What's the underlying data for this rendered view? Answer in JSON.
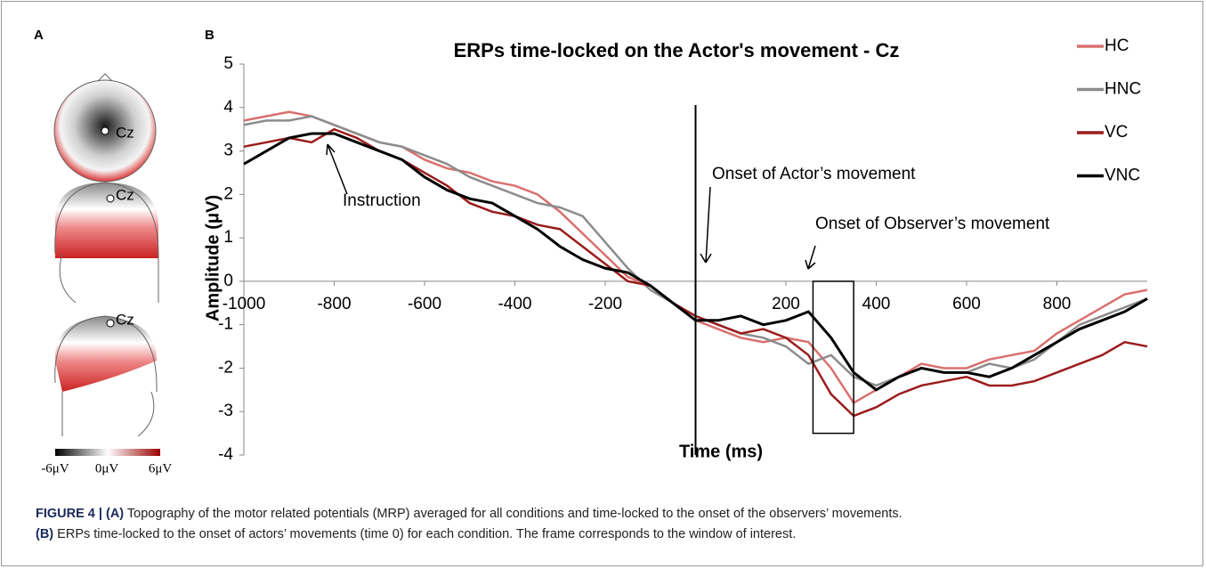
{
  "panel_a": {
    "label": "A",
    "electrode": [
      "Cz",
      "Cz",
      "Cz"
    ],
    "colorbar": [
      "-6μV",
      "0μV",
      "6μV"
    ]
  },
  "chart_data": {
    "type": "line",
    "panel_label": "B",
    "title": "ERPs time-locked on the Actor's movement - Cz",
    "x_label": "Time (ms)",
    "y_label": "Amplitude (μV)",
    "x": [
      -1000,
      -950,
      -900,
      -850,
      -800,
      -750,
      -700,
      -650,
      -600,
      -550,
      -500,
      -450,
      -400,
      -350,
      -300,
      -250,
      -200,
      -150,
      -100,
      -50,
      0,
      50,
      100,
      150,
      200,
      250,
      300,
      350,
      400,
      450,
      500,
      550,
      600,
      650,
      700,
      750,
      800,
      850,
      900,
      950,
      1000
    ],
    "series": [
      {
        "name": "HC",
        "color": "#d9706e",
        "values": [
          3.7,
          3.8,
          3.9,
          3.8,
          3.6,
          3.4,
          3.2,
          3.1,
          2.8,
          2.6,
          2.5,
          2.3,
          2.2,
          2.0,
          1.6,
          1.1,
          0.6,
          0.1,
          -0.1,
          -0.5,
          -0.9,
          -1.1,
          -1.3,
          -1.4,
          -1.3,
          -1.4,
          -2.0,
          -2.8,
          -2.5,
          -2.2,
          -1.9,
          -2.0,
          -2.0,
          -1.8,
          -1.7,
          -1.6,
          -1.2,
          -0.9,
          -0.6,
          -0.3,
          -0.2
        ]
      },
      {
        "name": "HNC",
        "color": "#8c8c8c",
        "values": [
          3.6,
          3.7,
          3.7,
          3.8,
          3.6,
          3.4,
          3.2,
          3.1,
          2.9,
          2.7,
          2.4,
          2.2,
          2.0,
          1.8,
          1.7,
          1.5,
          0.9,
          0.3,
          -0.2,
          -0.5,
          -0.8,
          -1.0,
          -1.2,
          -1.3,
          -1.5,
          -1.9,
          -1.7,
          -2.2,
          -2.4,
          -2.2,
          -2.0,
          -2.1,
          -2.1,
          -1.9,
          -2.0,
          -1.8,
          -1.4,
          -1.0,
          -0.8,
          -0.6,
          -0.4
        ]
      },
      {
        "name": "VC",
        "color": "#9b1c1c",
        "values": [
          3.1,
          3.2,
          3.3,
          3.2,
          3.5,
          3.3,
          3.0,
          2.8,
          2.5,
          2.2,
          1.8,
          1.6,
          1.5,
          1.3,
          1.2,
          0.8,
          0.4,
          0.0,
          -0.1,
          -0.5,
          -0.8,
          -1.0,
          -1.2,
          -1.1,
          -1.3,
          -1.7,
          -2.6,
          -3.1,
          -2.9,
          -2.6,
          -2.4,
          -2.3,
          -2.2,
          -2.4,
          -2.4,
          -2.3,
          -2.1,
          -1.9,
          -1.7,
          -1.4,
          -1.5
        ]
      },
      {
        "name": "VNC",
        "color": "#000000",
        "values": [
          2.7,
          3.0,
          3.3,
          3.4,
          3.4,
          3.2,
          3.0,
          2.8,
          2.4,
          2.1,
          1.9,
          1.8,
          1.5,
          1.2,
          0.8,
          0.5,
          0.3,
          0.2,
          -0.1,
          -0.5,
          -0.9,
          -0.9,
          -0.8,
          -1.0,
          -0.9,
          -0.7,
          -1.3,
          -2.1,
          -2.5,
          -2.2,
          -2.0,
          -2.1,
          -2.1,
          -2.2,
          -2.0,
          -1.7,
          -1.4,
          -1.1,
          -0.9,
          -0.7,
          -0.4
        ]
      }
    ],
    "xlim": [
      -1000,
      1000
    ],
    "xticks": [
      -1000,
      -800,
      -600,
      -400,
      -200,
      200,
      400,
      600,
      800
    ],
    "ylim": [
      -4,
      5
    ],
    "yticks": [
      5,
      4,
      3,
      2,
      1,
      0,
      -1,
      -2,
      -3,
      -4
    ],
    "onset_x": 0,
    "window_x": [
      260,
      350
    ],
    "window_y": [
      -3.5,
      0
    ],
    "annotations": [
      "Instruction",
      "Onset of Actor’s movement",
      "Onset of Observer’s movement"
    ]
  },
  "caption": {
    "figure": "FIGURE 4 |",
    "a_label": "(A)",
    "a_text": "Topography of the motor related potentials (MRP) averaged for all conditions and time-locked to the onset of the observers’ movements.",
    "b_label": "(B)",
    "b_text": "ERPs time-locked to the onset of actors’ movements (time 0) for each condition. The frame corresponds to the window of interest."
  }
}
